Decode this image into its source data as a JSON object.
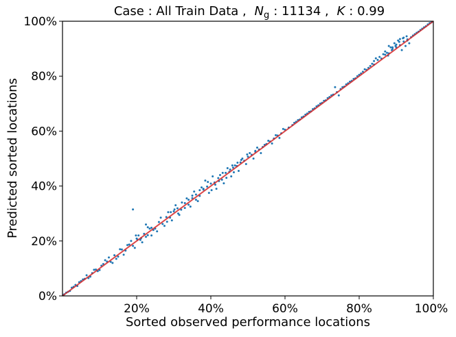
{
  "chart_data": {
    "type": "scatter",
    "title_prefix": "Case : All Train Data ,",
    "title_ng_symbol": "N",
    "title_ng_subscript": "g",
    "title_ng_value": ": 11134 ,",
    "title_k_symbol": "K",
    "title_k_value": ": 0.99",
    "xlabel": "Sorted observed performance locations",
    "ylabel": "Predicted sorted locations",
    "xlim": [
      0,
      100
    ],
    "ylim": [
      0,
      100
    ],
    "x_ticks": [
      {
        "value": 20,
        "label": "20%"
      },
      {
        "value": 40,
        "label": "40%"
      },
      {
        "value": 60,
        "label": "60%"
      },
      {
        "value": 80,
        "label": "80%"
      },
      {
        "value": 100,
        "label": "100%"
      }
    ],
    "y_ticks": [
      {
        "value": 0,
        "label": "0%"
      },
      {
        "value": 20,
        "label": "20%"
      },
      {
        "value": 40,
        "label": "40%"
      },
      {
        "value": 60,
        "label": "60%"
      },
      {
        "value": 80,
        "label": "80%"
      },
      {
        "value": 100,
        "label": "100%"
      }
    ],
    "reference_line": {
      "x": [
        0,
        100
      ],
      "y": [
        0,
        100
      ],
      "color": "#d62728"
    },
    "grid": false,
    "point_color": "#1f77b4",
    "points": [
      [
        1.0,
        1.2
      ],
      [
        2.0,
        1.8
      ],
      [
        3.0,
        3.3
      ],
      [
        4.0,
        3.6
      ],
      [
        5.0,
        5.4
      ],
      [
        6.0,
        6.2
      ],
      [
        7.0,
        6.5
      ],
      [
        8.0,
        8.3
      ],
      [
        9.0,
        9.6
      ],
      [
        10.0,
        9.4
      ],
      [
        11.0,
        11.6
      ],
      [
        12.0,
        12.5
      ],
      [
        13.0,
        12.4
      ],
      [
        14.0,
        14.8
      ],
      [
        15.0,
        14.3
      ],
      [
        16.0,
        16.9
      ],
      [
        17.0,
        16.5
      ],
      [
        18.0,
        18.7
      ],
      [
        19.0,
        18.2
      ],
      [
        20.0,
        20.9
      ],
      [
        21.0,
        20.4
      ],
      [
        22.0,
        22.6
      ],
      [
        23.0,
        22.1
      ],
      [
        24.0,
        24.8
      ],
      [
        25.0,
        24.5
      ],
      [
        26.0,
        26.9
      ],
      [
        27.0,
        26.2
      ],
      [
        28.0,
        28.7
      ],
      [
        29.0,
        28.5
      ],
      [
        30.0,
        30.8
      ],
      [
        31.0,
        31.9
      ],
      [
        32.0,
        31.4
      ],
      [
        33.0,
        33.8
      ],
      [
        34.0,
        33.2
      ],
      [
        35.0,
        35.6
      ],
      [
        36.0,
        36.9
      ],
      [
        37.0,
        36.4
      ],
      [
        38.0,
        38.7
      ],
      [
        39.0,
        39.8
      ],
      [
        40.0,
        40.9
      ],
      [
        41.0,
        41.3
      ],
      [
        42.0,
        42.9
      ],
      [
        43.0,
        42.3
      ],
      [
        44.0,
        44.8
      ],
      [
        45.0,
        45.2
      ],
      [
        46.0,
        46.7
      ],
      [
        47.0,
        47.3
      ],
      [
        48.0,
        48.6
      ],
      [
        49.0,
        49.2
      ],
      [
        50.0,
        50.7
      ],
      [
        51.0,
        51.4
      ],
      [
        52.0,
        52.5
      ],
      [
        53.0,
        53.3
      ],
      [
        54.0,
        54.2
      ],
      [
        55.0,
        55.3
      ],
      [
        56.0,
        56.2
      ],
      [
        57.0,
        57.3
      ],
      [
        58.0,
        58.4
      ],
      [
        59.0,
        59.2
      ],
      [
        60.0,
        60.5
      ],
      [
        61.0,
        61.3
      ],
      [
        62.0,
        62.2
      ],
      [
        63.0,
        63.4
      ],
      [
        64.0,
        64.2
      ],
      [
        65.0,
        65.3
      ],
      [
        66.0,
        66.4
      ],
      [
        67.0,
        67.2
      ],
      [
        68.0,
        68.3
      ],
      [
        69.0,
        69.4
      ],
      [
        70.0,
        70.3
      ],
      [
        71.0,
        71.2
      ],
      [
        72.0,
        72.4
      ],
      [
        73.0,
        73.3
      ],
      [
        74.0,
        74.2
      ],
      [
        75.0,
        75.3
      ],
      [
        76.0,
        76.2
      ],
      [
        77.0,
        77.4
      ],
      [
        78.0,
        78.3
      ],
      [
        79.0,
        79.2
      ],
      [
        80.0,
        80.5
      ],
      [
        81.0,
        81.6
      ],
      [
        82.0,
        82.3
      ],
      [
        83.0,
        83.7
      ],
      [
        84.0,
        84.2
      ],
      [
        85.0,
        85.9
      ],
      [
        86.0,
        86.4
      ],
      [
        87.0,
        87.8
      ],
      [
        88.0,
        88.3
      ],
      [
        89.0,
        89.9
      ],
      [
        90.0,
        90.5
      ],
      [
        91.0,
        91.3
      ],
      [
        92.0,
        92.6
      ],
      [
        93.0,
        93.4
      ],
      [
        94.0,
        94.2
      ],
      [
        95.0,
        95.3
      ],
      [
        96.0,
        96.2
      ],
      [
        97.0,
        97.3
      ],
      [
        98.0,
        98.2
      ],
      [
        99.0,
        99.3
      ],
      [
        30.5,
        33.0
      ],
      [
        31.5,
        29.5
      ],
      [
        38.5,
        42.0
      ],
      [
        39.5,
        37.5
      ],
      [
        40.5,
        43.5
      ],
      [
        41.5,
        39.0
      ],
      [
        42.5,
        44.0
      ],
      [
        43.5,
        41.0
      ],
      [
        44.5,
        46.5
      ],
      [
        45.5,
        43.5
      ],
      [
        23.0,
        25.0
      ],
      [
        24.0,
        22.0
      ],
      [
        22.5,
        26.0
      ],
      [
        25.5,
        23.5
      ],
      [
        28.5,
        30.5
      ],
      [
        29.5,
        27.5
      ],
      [
        90.5,
        93.0
      ],
      [
        91.5,
        89.5
      ],
      [
        89.5,
        92.0
      ],
      [
        92.5,
        91.0
      ],
      [
        88.5,
        90.5
      ],
      [
        93.5,
        92.0
      ],
      [
        35.5,
        38.0
      ],
      [
        36.5,
        34.5
      ],
      [
        46.5,
        47.5
      ],
      [
        47.5,
        45.5
      ],
      [
        48.5,
        50.0
      ],
      [
        49.5,
        48.0
      ],
      [
        15.5,
        17.0
      ],
      [
        16.5,
        15.0
      ],
      [
        12.5,
        14.0
      ],
      [
        13.5,
        12.0
      ],
      [
        18.5,
        20.0
      ],
      [
        19.5,
        17.5
      ],
      [
        20.5,
        22.0
      ],
      [
        21.5,
        19.5
      ],
      [
        33.5,
        35.5
      ],
      [
        34.5,
        32.5
      ],
      [
        37.5,
        39.5
      ],
      [
        26.5,
        28.5
      ],
      [
        27.5,
        25.5
      ],
      [
        88.0,
        91.0
      ],
      [
        91.0,
        93.5
      ],
      [
        92.0,
        94.0
      ],
      [
        90.0,
        91.5
      ],
      [
        87.0,
        89.0
      ],
      [
        85.5,
        87.0
      ],
      [
        84.5,
        86.5
      ],
      [
        73.5,
        76.0
      ],
      [
        74.5,
        73.0
      ],
      [
        11.5,
        13.0
      ],
      [
        14.5,
        13.5
      ],
      [
        17.5,
        18.5
      ],
      [
        50.5,
        52.0
      ],
      [
        51.5,
        50.0
      ],
      [
        52.5,
        54.0
      ],
      [
        53.5,
        52.0
      ],
      [
        55.5,
        56.5
      ],
      [
        56.5,
        55.5
      ],
      [
        57.5,
        58.5
      ],
      [
        58.5,
        57.5
      ],
      [
        59.5,
        60.8
      ],
      [
        5.5,
        6.0
      ],
      [
        6.5,
        7.5
      ],
      [
        7.5,
        7.0
      ],
      [
        8.5,
        9.5
      ],
      [
        9.5,
        9.0
      ],
      [
        10.5,
        11.0
      ],
      [
        4.5,
        5.0
      ],
      [
        3.5,
        4.0
      ],
      [
        2.5,
        3.0
      ],
      [
        1.5,
        1.5
      ],
      [
        0.5,
        0.6
      ],
      [
        0.2,
        0.3
      ],
      [
        99.5,
        99.6
      ],
      [
        98.5,
        98.8
      ],
      [
        97.5,
        97.8
      ],
      [
        96.5,
        96.8
      ],
      [
        95.5,
        95.8
      ],
      [
        94.5,
        94.8
      ],
      [
        39.2,
        41.5
      ],
      [
        40.2,
        38.5
      ],
      [
        41.2,
        40.5
      ],
      [
        42.2,
        41.8
      ],
      [
        43.2,
        44.8
      ],
      [
        44.2,
        43.0
      ],
      [
        45.2,
        46.0
      ],
      [
        32.2,
        34.0
      ],
      [
        31.2,
        30.0
      ],
      [
        30.2,
        31.5
      ],
      [
        29.2,
        30.5
      ],
      [
        28.2,
        27.0
      ],
      [
        24.5,
        24.0
      ],
      [
        23.5,
        24.5
      ],
      [
        22.5,
        21.5
      ],
      [
        21.2,
        21.0
      ],
      [
        20.2,
        20.5
      ],
      [
        38.0,
        39.0
      ],
      [
        37.0,
        38.5
      ],
      [
        36.0,
        35.0
      ],
      [
        35.0,
        36.5
      ],
      [
        34.0,
        35.0
      ],
      [
        33.0,
        32.0
      ],
      [
        62.5,
        63.0
      ],
      [
        63.5,
        64.0
      ],
      [
        64.5,
        65.0
      ],
      [
        65.5,
        66.0
      ],
      [
        66.5,
        67.0
      ],
      [
        67.5,
        68.0
      ],
      [
        68.5,
        69.0
      ],
      [
        69.5,
        70.0
      ],
      [
        70.5,
        71.0
      ],
      [
        71.5,
        72.0
      ],
      [
        72.5,
        73.0
      ],
      [
        75.5,
        76.0
      ],
      [
        76.5,
        77.0
      ],
      [
        77.5,
        78.0
      ],
      [
        78.5,
        79.0
      ],
      [
        79.5,
        80.0
      ],
      [
        80.5,
        81.0
      ],
      [
        81.5,
        82.5
      ],
      [
        82.5,
        83.0
      ],
      [
        83.5,
        84.5
      ],
      [
        84.0,
        85.5
      ],
      [
        86.5,
        88.0
      ],
      [
        87.5,
        88.5
      ],
      [
        89.0,
        90.5
      ],
      [
        93.0,
        93.0
      ],
      [
        91.8,
        93.8
      ],
      [
        92.8,
        94.5
      ],
      [
        90.8,
        92.5
      ],
      [
        89.8,
        91.0
      ],
      [
        88.8,
        89.5
      ],
      [
        87.8,
        87.5
      ],
      [
        19.8,
        22.0
      ],
      [
        19.0,
        31.5
      ],
      [
        52.0,
        52.8
      ],
      [
        54.5,
        55.0
      ],
      [
        49.8,
        51.5
      ],
      [
        48.2,
        49.5
      ],
      [
        47.2,
        48.5
      ],
      [
        46.2,
        45.0
      ],
      [
        45.8,
        47.5
      ]
    ]
  }
}
